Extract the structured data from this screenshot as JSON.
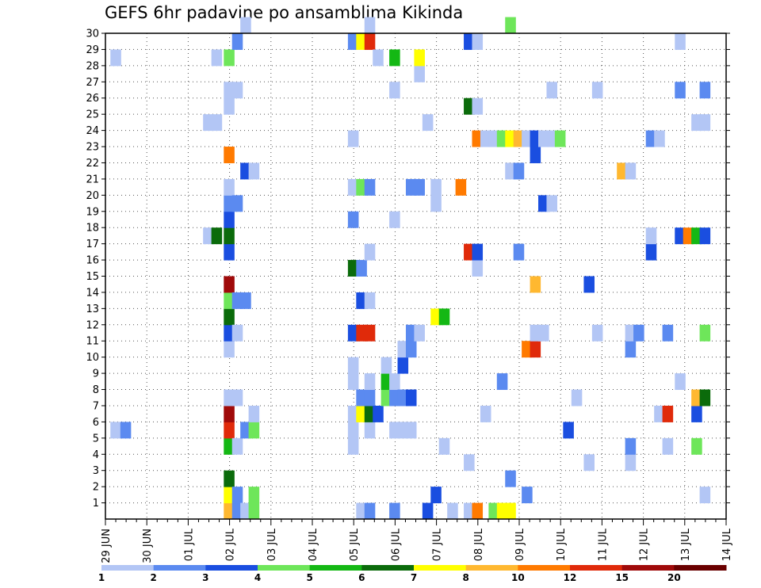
{
  "chart_data": {
    "type": "heatmap",
    "title": "GEFS 6hr padavine po ansamblima Kikinda",
    "x_tick_labels": [
      "29 JUN",
      "30 JUN",
      "01 JUL",
      "02 JUL",
      "03 JUL",
      "04 JUL",
      "05 JUL",
      "06 JUL",
      "07 JUL",
      "08 JUL",
      "09 JUL",
      "10 JUL",
      "11 JUL",
      "12 JUL",
      "13 JUL",
      "14 JUL"
    ],
    "y_tick_labels": [
      "1",
      "2",
      "3",
      "4",
      "5",
      "6",
      "7",
      "8",
      "9",
      "10",
      "11",
      "12",
      "13",
      "14",
      "15",
      "16",
      "17",
      "18",
      "19",
      "20",
      "21",
      "22",
      "23",
      "24",
      "25",
      "26",
      "27",
      "28",
      "29",
      "30"
    ],
    "x_range_days": [
      0,
      15
    ],
    "y_range": [
      0,
      30
    ],
    "time_step_hours": 6,
    "grid": "dotted",
    "legend": {
      "placement": "bottom",
      "levels": [
        "1",
        "2",
        "3",
        "4",
        "5",
        "6",
        "7",
        "8",
        "10",
        "12",
        "15",
        "20"
      ],
      "colors": [
        "#b3c6f5",
        "#5b8af0",
        "#1a4ee0",
        "#6ee65a",
        "#14b814",
        "#0b6b0b",
        "#ffff00",
        "#ffb830",
        "#ff7a00",
        "#e02a0a",
        "#a00a0a",
        "#6a0000"
      ]
    },
    "cells": [
      [
        0.12,
        5,
        0
      ],
      [
        0.12,
        28,
        0
      ],
      [
        0.36,
        5,
        1
      ],
      [
        2.36,
        24,
        0
      ],
      [
        2.36,
        17,
        0
      ],
      [
        2.56,
        28,
        0
      ],
      [
        2.56,
        24,
        0
      ],
      [
        2.56,
        17,
        5
      ],
      [
        2.86,
        0,
        7
      ],
      [
        2.86,
        1,
        6
      ],
      [
        2.86,
        2,
        5
      ],
      [
        2.86,
        4,
        4
      ],
      [
        2.86,
        5,
        9
      ],
      [
        2.86,
        6,
        10
      ],
      [
        2.86,
        7,
        0
      ],
      [
        2.86,
        10,
        0
      ],
      [
        2.86,
        11,
        2
      ],
      [
        2.86,
        12,
        5
      ],
      [
        2.86,
        13,
        3
      ],
      [
        2.86,
        14,
        10
      ],
      [
        2.86,
        16,
        2
      ],
      [
        2.86,
        17,
        5
      ],
      [
        2.86,
        18,
        2
      ],
      [
        2.86,
        19,
        1
      ],
      [
        2.86,
        20,
        0
      ],
      [
        2.86,
        22,
        8
      ],
      [
        2.86,
        25,
        0
      ],
      [
        2.86,
        26,
        0
      ],
      [
        2.86,
        28,
        3
      ],
      [
        3.06,
        0,
        1
      ],
      [
        3.06,
        1,
        1
      ],
      [
        3.06,
        4,
        0
      ],
      [
        3.06,
        7,
        0
      ],
      [
        3.06,
        11,
        0
      ],
      [
        3.06,
        13,
        1
      ],
      [
        3.06,
        19,
        1
      ],
      [
        3.06,
        26,
        0
      ],
      [
        3.06,
        29,
        1
      ],
      [
        3.26,
        0,
        0
      ],
      [
        3.26,
        5,
        1
      ],
      [
        3.26,
        13,
        1
      ],
      [
        3.26,
        21,
        2
      ],
      [
        3.26,
        30,
        0
      ],
      [
        3.46,
        0,
        3
      ],
      [
        3.46,
        1,
        3
      ],
      [
        3.46,
        5,
        3
      ],
      [
        3.46,
        6,
        0
      ],
      [
        3.46,
        21,
        0
      ],
      [
        5.86,
        4,
        0
      ],
      [
        5.86,
        5,
        0
      ],
      [
        5.86,
        6,
        0
      ],
      [
        5.86,
        8,
        0
      ],
      [
        5.86,
        9,
        0
      ],
      [
        5.86,
        11,
        2
      ],
      [
        5.86,
        15,
        5
      ],
      [
        5.86,
        18,
        1
      ],
      [
        5.86,
        20,
        0
      ],
      [
        5.86,
        23,
        0
      ],
      [
        5.86,
        29,
        1
      ],
      [
        6.06,
        0,
        0
      ],
      [
        6.06,
        6,
        6
      ],
      [
        6.06,
        7,
        1
      ],
      [
        6.06,
        11,
        9
      ],
      [
        6.06,
        13,
        2
      ],
      [
        6.06,
        15,
        1
      ],
      [
        6.06,
        20,
        3
      ],
      [
        6.06,
        29,
        6
      ],
      [
        6.26,
        0,
        1
      ],
      [
        6.26,
        5,
        0
      ],
      [
        6.26,
        6,
        5
      ],
      [
        6.26,
        7,
        1
      ],
      [
        6.26,
        8,
        0
      ],
      [
        6.26,
        11,
        9
      ],
      [
        6.26,
        13,
        0
      ],
      [
        6.26,
        16,
        0
      ],
      [
        6.26,
        20,
        1
      ],
      [
        6.26,
        29,
        9
      ],
      [
        6.26,
        30,
        0
      ],
      [
        6.46,
        6,
        2
      ],
      [
        6.46,
        28,
        0
      ],
      [
        6.66,
        7,
        3
      ],
      [
        6.66,
        8,
        4
      ],
      [
        6.66,
        9,
        0
      ],
      [
        6.86,
        0,
        1
      ],
      [
        6.86,
        5,
        0
      ],
      [
        6.86,
        7,
        1
      ],
      [
        6.86,
        8,
        0
      ],
      [
        6.86,
        18,
        0
      ],
      [
        6.86,
        26,
        0
      ],
      [
        6.86,
        28,
        4
      ],
      [
        7.06,
        5,
        0
      ],
      [
        7.06,
        7,
        1
      ],
      [
        7.06,
        9,
        2
      ],
      [
        7.06,
        10,
        0
      ],
      [
        7.26,
        5,
        0
      ],
      [
        7.26,
        7,
        2
      ],
      [
        7.26,
        10,
        1
      ],
      [
        7.26,
        11,
        1
      ],
      [
        7.26,
        20,
        1
      ],
      [
        7.46,
        11,
        0
      ],
      [
        7.46,
        20,
        1
      ],
      [
        7.46,
        27,
        0
      ],
      [
        7.46,
        28,
        6
      ],
      [
        7.66,
        0,
        2
      ],
      [
        7.66,
        24,
        0
      ],
      [
        7.86,
        1,
        2
      ],
      [
        7.86,
        12,
        6
      ],
      [
        7.86,
        19,
        0
      ],
      [
        7.86,
        20,
        0
      ],
      [
        8.06,
        4,
        0
      ],
      [
        8.06,
        12,
        4
      ],
      [
        8.26,
        0,
        0
      ],
      [
        8.46,
        20,
        8
      ],
      [
        8.66,
        0,
        0
      ],
      [
        8.66,
        3,
        0
      ],
      [
        8.66,
        16,
        9
      ],
      [
        8.66,
        25,
        5
      ],
      [
        8.66,
        29,
        2
      ],
      [
        8.86,
        0,
        8
      ],
      [
        8.86,
        15,
        0
      ],
      [
        8.86,
        16,
        2
      ],
      [
        8.86,
        23,
        8
      ],
      [
        8.86,
        25,
        0
      ],
      [
        8.86,
        29,
        0
      ],
      [
        9.06,
        6,
        0
      ],
      [
        9.06,
        23,
        0
      ],
      [
        9.26,
        0,
        3
      ],
      [
        9.26,
        23,
        0
      ],
      [
        9.46,
        0,
        6
      ],
      [
        9.46,
        8,
        1
      ],
      [
        9.46,
        23,
        3
      ],
      [
        9.66,
        0,
        6
      ],
      [
        9.66,
        2,
        1
      ],
      [
        9.66,
        21,
        0
      ],
      [
        9.66,
        23,
        6
      ],
      [
        9.66,
        30,
        3
      ],
      [
        9.86,
        16,
        1
      ],
      [
        9.86,
        21,
        1
      ],
      [
        9.86,
        23,
        7
      ],
      [
        10.06,
        1,
        1
      ],
      [
        10.06,
        10,
        8
      ],
      [
        10.06,
        23,
        0
      ],
      [
        10.26,
        10,
        9
      ],
      [
        10.26,
        11,
        0
      ],
      [
        10.26,
        14,
        7
      ],
      [
        10.26,
        22,
        2
      ],
      [
        10.26,
        23,
        2
      ],
      [
        10.46,
        11,
        0
      ],
      [
        10.46,
        19,
        2
      ],
      [
        10.46,
        23,
        0
      ],
      [
        10.66,
        19,
        0
      ],
      [
        10.66,
        23,
        0
      ],
      [
        10.66,
        26,
        0
      ],
      [
        10.86,
        23,
        3
      ],
      [
        11.06,
        5,
        2
      ],
      [
        11.26,
        7,
        0
      ],
      [
        11.56,
        3,
        0
      ],
      [
        11.56,
        14,
        2
      ],
      [
        11.76,
        11,
        0
      ],
      [
        11.76,
        26,
        0
      ],
      [
        12.36,
        21,
        7
      ],
      [
        12.56,
        3,
        0
      ],
      [
        12.56,
        4,
        1
      ],
      [
        12.56,
        10,
        1
      ],
      [
        12.56,
        11,
        0
      ],
      [
        12.56,
        21,
        0
      ],
      [
        12.76,
        11,
        1
      ],
      [
        13.06,
        23,
        1
      ],
      [
        13.06,
        16,
        2
      ],
      [
        13.06,
        17,
        0
      ],
      [
        13.26,
        6,
        0
      ],
      [
        13.26,
        23,
        0
      ],
      [
        13.46,
        4,
        0
      ],
      [
        13.46,
        6,
        9
      ],
      [
        13.46,
        11,
        1
      ],
      [
        13.76,
        8,
        0
      ],
      [
        13.76,
        17,
        2
      ],
      [
        13.76,
        26,
        1
      ],
      [
        13.76,
        29,
        0
      ],
      [
        13.96,
        17,
        8
      ],
      [
        14.16,
        4,
        3
      ],
      [
        14.16,
        6,
        2
      ],
      [
        14.16,
        7,
        7
      ],
      [
        14.16,
        17,
        4
      ],
      [
        14.16,
        24,
        0
      ],
      [
        14.36,
        7,
        5
      ],
      [
        14.36,
        17,
        2
      ],
      [
        14.36,
        1,
        0
      ],
      [
        14.36,
        11,
        3
      ],
      [
        14.36,
        24,
        0
      ],
      [
        14.36,
        26,
        1
      ]
    ]
  }
}
